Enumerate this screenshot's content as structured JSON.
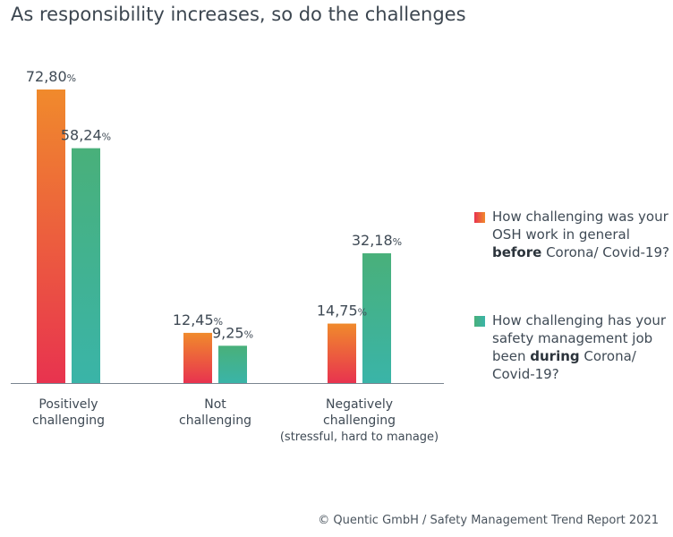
{
  "title": "As responsibility increases, so do the challenges",
  "legend": [
    {
      "parts": [
        "How challenging was your OSH work in general ",
        "before",
        " Corona/ Covid-19?"
      ]
    },
    {
      "parts": [
        "How challenging has your safety management job been ",
        "during",
        " Corona/ Covid-19?"
      ]
    }
  ],
  "footer": "© Quentic GmbH / Safety Management Trend Report 2021",
  "colors": {
    "before_top": "#f08a2c",
    "before_bottom": "#e8334f",
    "during_top": "#49b07a",
    "during_bottom": "#3ab4a8",
    "axis": "#7a8590"
  },
  "chart_data": {
    "type": "bar",
    "categories": [
      [
        "Positively",
        "challenging"
      ],
      [
        "Not",
        "challenging"
      ],
      [
        "Negatively",
        "challenging",
        "(stressful, hard to manage)"
      ]
    ],
    "series": [
      {
        "key": "before",
        "values": [
          72.8,
          12.45,
          14.75
        ],
        "labels": [
          "72,80",
          "12,45",
          "14,75"
        ]
      },
      {
        "key": "during",
        "values": [
          58.24,
          9.25,
          32.18
        ],
        "labels": [
          "58,24",
          "9,25",
          "32,18"
        ]
      }
    ],
    "value_suffix": "%",
    "ylim": [
      0,
      100
    ]
  }
}
